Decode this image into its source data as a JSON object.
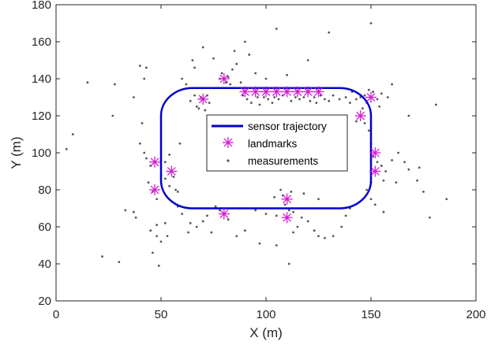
{
  "chart_data": {
    "type": "scatter",
    "title": "",
    "xlabel": "X (m)",
    "ylabel": "Y (m)",
    "xlim": [
      0,
      200
    ],
    "ylim": [
      20,
      180
    ],
    "xticks": [
      "0",
      "50",
      "100",
      "150",
      "200"
    ],
    "yticks": [
      "20",
      "40",
      "60",
      "80",
      "100",
      "120",
      "140",
      "160",
      "180"
    ],
    "grid": false,
    "legend_position": "center",
    "colors": {
      "trajectory": "#0000cc",
      "landmarks": "#d61ad6",
      "measurements": "#555555",
      "axes": "#262626"
    },
    "series": [
      {
        "name": "sensor trajectory",
        "kind": "line",
        "rounded_rectangle": {
          "x_range": [
            50,
            150
          ],
          "y_range": [
            70,
            135
          ],
          "corner_radius": 15
        }
      },
      {
        "name": "landmarks",
        "kind": "marker",
        "marker": "asterisk",
        "points": [
          [
            47,
            95
          ],
          [
            47,
            80
          ],
          [
            55,
            90
          ],
          [
            70,
            129
          ],
          [
            80,
            67
          ],
          [
            80,
            140
          ],
          [
            90,
            133
          ],
          [
            95,
            133
          ],
          [
            100,
            133
          ],
          [
            105,
            133
          ],
          [
            110,
            133
          ],
          [
            115,
            133
          ],
          [
            120,
            133
          ],
          [
            125,
            133
          ],
          [
            110,
            75
          ],
          [
            110,
            65
          ],
          [
            145,
            120
          ],
          [
            150,
            130
          ],
          [
            152,
            100
          ],
          [
            152,
            90
          ]
        ]
      },
      {
        "name": "measurements",
        "kind": "point",
        "points": [
          [
            15,
            138
          ],
          [
            28,
            137
          ],
          [
            27,
            120
          ],
          [
            8,
            110
          ],
          [
            5,
            102
          ],
          [
            22,
            44
          ],
          [
            30,
            41
          ],
          [
            33,
            69
          ],
          [
            37,
            68
          ],
          [
            38,
            65
          ],
          [
            37,
            130
          ],
          [
            40,
            147
          ],
          [
            42,
            140
          ],
          [
            43,
            146
          ],
          [
            41,
            116
          ],
          [
            40,
            105
          ],
          [
            42,
            100
          ],
          [
            43,
            97
          ],
          [
            45,
            93
          ],
          [
            44,
            84
          ],
          [
            46,
            79
          ],
          [
            48,
            75
          ],
          [
            48,
            61
          ],
          [
            45,
            58
          ],
          [
            46,
            46
          ],
          [
            48,
            55
          ],
          [
            50,
            52
          ],
          [
            49,
            39
          ],
          [
            52,
            62
          ],
          [
            53,
            55
          ],
          [
            50,
            88
          ],
          [
            52,
            95
          ],
          [
            54,
            99
          ],
          [
            56,
            87
          ],
          [
            57,
            80
          ],
          [
            58,
            71
          ],
          [
            59,
            105
          ],
          [
            60,
            140
          ],
          [
            62,
            137
          ],
          [
            64,
            128
          ],
          [
            66,
            131
          ],
          [
            67,
            125
          ],
          [
            68,
            124
          ],
          [
            69,
            130
          ],
          [
            71,
            123
          ],
          [
            72,
            131
          ],
          [
            73,
            127
          ],
          [
            65,
            150
          ],
          [
            66,
            146
          ],
          [
            70,
            157
          ],
          [
            75,
            151
          ],
          [
            78,
            140
          ],
          [
            79,
            143
          ],
          [
            81,
            138
          ],
          [
            82,
            141
          ],
          [
            83,
            137
          ],
          [
            84,
            145
          ],
          [
            86,
            148
          ],
          [
            85,
            155
          ],
          [
            90,
            160
          ],
          [
            92,
            153
          ],
          [
            88,
            138
          ],
          [
            89,
            131
          ],
          [
            91,
            129
          ],
          [
            93,
            127
          ],
          [
            96,
            130
          ],
          [
            97,
            126
          ],
          [
            99,
            130
          ],
          [
            101,
            129
          ],
          [
            103,
            127
          ],
          [
            104,
            130
          ],
          [
            106,
            129
          ],
          [
            108,
            131
          ],
          [
            112,
            128
          ],
          [
            114,
            130
          ],
          [
            116,
            129
          ],
          [
            118,
            130
          ],
          [
            121,
            128
          ],
          [
            123,
            130
          ],
          [
            124,
            127
          ],
          [
            126,
            131
          ],
          [
            128,
            129
          ],
          [
            130,
            128
          ],
          [
            132,
            131
          ],
          [
            135,
            129
          ],
          [
            138,
            130
          ],
          [
            140,
            127
          ],
          [
            141,
            133
          ],
          [
            143,
            129
          ],
          [
            145,
            130
          ],
          [
            147,
            131
          ],
          [
            148,
            127
          ],
          [
            149,
            134
          ],
          [
            151,
            133
          ],
          [
            153,
            129
          ],
          [
            155,
            132
          ],
          [
            154,
            125
          ],
          [
            146,
            124
          ],
          [
            143,
            117
          ],
          [
            147,
            116
          ],
          [
            149,
            112
          ],
          [
            150,
            105
          ],
          [
            151,
            98
          ],
          [
            153,
            95
          ],
          [
            155,
            93
          ],
          [
            157,
            90
          ],
          [
            156,
            85
          ],
          [
            150,
            84
          ],
          [
            148,
            80
          ],
          [
            150,
            75
          ],
          [
            152,
            72
          ],
          [
            156,
            68
          ],
          [
            162,
            84
          ],
          [
            160,
            96
          ],
          [
            163,
            100
          ],
          [
            166,
            95
          ],
          [
            168,
            91
          ],
          [
            172,
            85
          ],
          [
            175,
            79
          ],
          [
            178,
            65
          ],
          [
            173,
            92
          ],
          [
            181,
            126
          ],
          [
            186,
            75
          ],
          [
            168,
            120
          ],
          [
            158,
            130
          ],
          [
            150,
            170
          ],
          [
            160,
            137
          ],
          [
            130,
            165
          ],
          [
            105,
            167
          ],
          [
            120,
            150
          ],
          [
            100,
            140
          ],
          [
            95,
            143
          ],
          [
            110,
            142
          ],
          [
            105,
            50
          ],
          [
            97,
            51
          ],
          [
            111,
            40
          ],
          [
            113,
            57
          ],
          [
            115,
            60
          ],
          [
            117,
            65
          ],
          [
            120,
            63
          ],
          [
            123,
            58
          ],
          [
            125,
            55
          ],
          [
            128,
            54
          ],
          [
            132,
            55
          ],
          [
            136,
            60
          ],
          [
            138,
            66
          ],
          [
            140,
            70
          ],
          [
            125,
            75
          ],
          [
            118,
            78
          ],
          [
            112,
            79
          ],
          [
            108,
            77
          ],
          [
            104,
            76
          ],
          [
            107,
            80
          ],
          [
            109,
            72
          ],
          [
            111,
            69
          ],
          [
            113,
            68
          ],
          [
            105,
            66
          ],
          [
            100,
            67
          ],
          [
            95,
            69
          ],
          [
            90,
            70
          ],
          [
            85,
            70
          ],
          [
            82,
            64
          ],
          [
            78,
            69
          ],
          [
            76,
            71
          ],
          [
            72,
            66
          ],
          [
            70,
            63
          ],
          [
            67,
            60
          ],
          [
            64,
            62
          ],
          [
            60,
            67
          ],
          [
            58,
            79
          ],
          [
            54,
            82
          ],
          [
            52,
            86
          ],
          [
            63,
            57
          ],
          [
            74,
            57
          ],
          [
            90,
            58
          ],
          [
            86,
            55
          ]
        ]
      }
    ]
  }
}
